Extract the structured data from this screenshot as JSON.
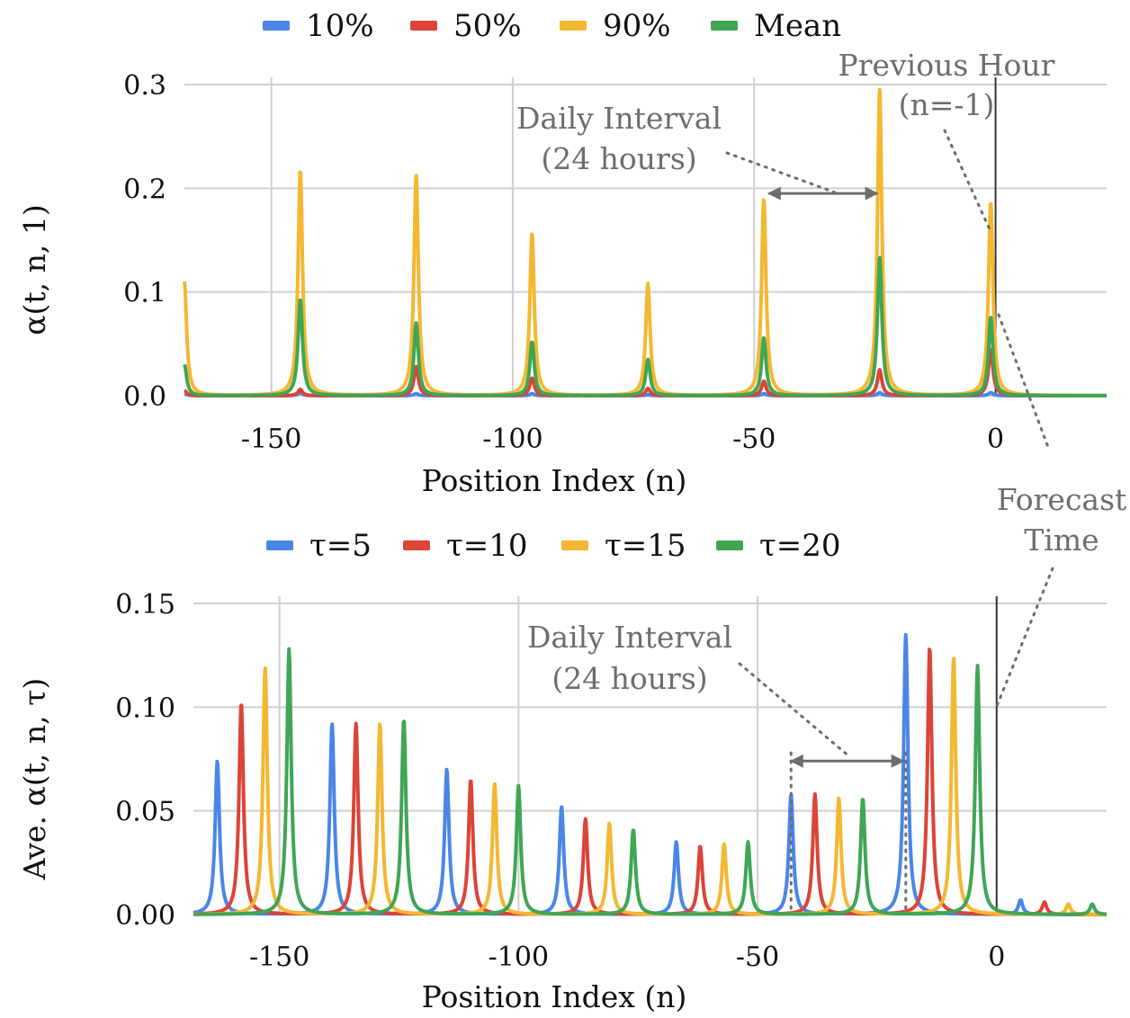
{
  "colors": {
    "blue": "#4a86e8",
    "red": "#db4437",
    "yellow": "#f4b731",
    "green": "#3fa654",
    "grid": "#cfcfcf",
    "annotation": "#6d6d6d"
  },
  "chart_data": [
    {
      "type": "line",
      "legend": [
        {
          "name": "10%",
          "color": "#4a86e8"
        },
        {
          "name": "50%",
          "color": "#db4437"
        },
        {
          "name": "90%",
          "color": "#f4b731"
        },
        {
          "name": "Mean",
          "color": "#3fa654"
        }
      ],
      "xlabel": "Position Index (n)",
      "ylabel": "α(t, n, 1)",
      "xlim": [
        -168,
        23
      ],
      "ylim": [
        0,
        0.3
      ],
      "xticks": [
        -150,
        -100,
        -50,
        0
      ],
      "xtick_labels": [
        "-150",
        "-100",
        "-50",
        "0"
      ],
      "yticks": [
        0,
        0.1,
        0.2,
        0.3
      ],
      "ytick_labels": [
        "0.0",
        "0.1",
        "0.2",
        "0.3"
      ],
      "peak_width": 0.55,
      "series": [
        {
          "name": "10%",
          "color": "#4a86e8",
          "peaks": [
            {
              "n": -168,
              "v": 0.002
            },
            {
              "n": -144,
              "v": 0.003
            },
            {
              "n": -120,
              "v": 0.002
            },
            {
              "n": -96,
              "v": 0.002
            },
            {
              "n": -72,
              "v": 0.001
            },
            {
              "n": -48,
              "v": 0.002
            },
            {
              "n": -24,
              "v": 0.003
            },
            {
              "n": -1,
              "v": 0.003
            }
          ]
        },
        {
          "name": "50%",
          "color": "#db4437",
          "peaks": [
            {
              "n": -168,
              "v": 0.005
            },
            {
              "n": -144,
              "v": 0.006
            },
            {
              "n": -120,
              "v": 0.028
            },
            {
              "n": -96,
              "v": 0.017
            },
            {
              "n": -72,
              "v": 0.007
            },
            {
              "n": -48,
              "v": 0.014
            },
            {
              "n": -24,
              "v": 0.025
            },
            {
              "n": -1,
              "v": 0.045
            }
          ]
        },
        {
          "name": "90%",
          "color": "#f4b731",
          "peaks": [
            {
              "n": -168,
              "v": 0.11
            },
            {
              "n": -144,
              "v": 0.218
            },
            {
              "n": -120,
              "v": 0.212
            },
            {
              "n": -96,
              "v": 0.157
            },
            {
              "n": -72,
              "v": 0.108
            },
            {
              "n": -48,
              "v": 0.19
            },
            {
              "n": -24,
              "v": 0.295
            },
            {
              "n": -1,
              "v": 0.187
            }
          ]
        },
        {
          "name": "Mean",
          "color": "#3fa654",
          "peaks": [
            {
              "n": -168,
              "v": 0.03
            },
            {
              "n": -144,
              "v": 0.093
            },
            {
              "n": -120,
              "v": 0.07
            },
            {
              "n": -96,
              "v": 0.052
            },
            {
              "n": -72,
              "v": 0.035
            },
            {
              "n": -48,
              "v": 0.056
            },
            {
              "n": -24,
              "v": 0.133
            },
            {
              "n": -1,
              "v": 0.076
            }
          ]
        }
      ],
      "annotations": {
        "daily_interval": [
          "Daily Interval",
          "(24 hours)"
        ],
        "previous_hour": [
          "Previous Hour",
          "(n=-1)"
        ]
      }
    },
    {
      "type": "line",
      "legend": [
        {
          "name": "τ=5",
          "color": "#4a86e8"
        },
        {
          "name": "τ=10",
          "color": "#db4437"
        },
        {
          "name": "τ=15",
          "color": "#f4b731"
        },
        {
          "name": "τ=20",
          "color": "#3fa654"
        }
      ],
      "xlabel": "Position Index (n)",
      "ylabel": "Ave. α(t, n, τ)",
      "xlim": [
        -168,
        23
      ],
      "ylim": [
        0,
        0.15
      ],
      "xticks": [
        -150,
        -100,
        -50,
        0
      ],
      "xtick_labels": [
        "-150",
        "-100",
        "-50",
        "0"
      ],
      "yticks": [
        0,
        0.05,
        0.1,
        0.15
      ],
      "ytick_labels": [
        "0.00",
        "0.05",
        "0.10",
        "0.15"
      ],
      "peak_width": 0.55,
      "series": [
        {
          "name": "τ=5",
          "color": "#4a86e8",
          "peaks": [
            {
              "n": -163,
              "v": 0.074
            },
            {
              "n": -139,
              "v": 0.092
            },
            {
              "n": -115,
              "v": 0.07
            },
            {
              "n": -91,
              "v": 0.052
            },
            {
              "n": -67,
              "v": 0.035
            },
            {
              "n": -43,
              "v": 0.058
            },
            {
              "n": -19,
              "v": 0.135
            },
            {
              "n": 5,
              "v": 0.007
            }
          ]
        },
        {
          "name": "τ=10",
          "color": "#db4437",
          "peaks": [
            {
              "n": -158,
              "v": 0.102
            },
            {
              "n": -134,
              "v": 0.092
            },
            {
              "n": -110,
              "v": 0.065
            },
            {
              "n": -86,
              "v": 0.046
            },
            {
              "n": -62,
              "v": 0.033
            },
            {
              "n": -38,
              "v": 0.058
            },
            {
              "n": -14,
              "v": 0.129
            },
            {
              "n": 10,
              "v": 0.006
            }
          ]
        },
        {
          "name": "τ=15",
          "color": "#f4b731",
          "peaks": [
            {
              "n": -153,
              "v": 0.119
            },
            {
              "n": -129,
              "v": 0.092
            },
            {
              "n": -105,
              "v": 0.063
            },
            {
              "n": -81,
              "v": 0.044
            },
            {
              "n": -57,
              "v": 0.034
            },
            {
              "n": -33,
              "v": 0.056
            },
            {
              "n": -9,
              "v": 0.124
            },
            {
              "n": 15,
              "v": 0.005
            }
          ]
        },
        {
          "name": "τ=20",
          "color": "#3fa654",
          "peaks": [
            {
              "n": -148,
              "v": 0.128
            },
            {
              "n": -124,
              "v": 0.094
            },
            {
              "n": -100,
              "v": 0.062
            },
            {
              "n": -76,
              "v": 0.041
            },
            {
              "n": -52,
              "v": 0.035
            },
            {
              "n": -28,
              "v": 0.056
            },
            {
              "n": -4,
              "v": 0.12
            },
            {
              "n": 20,
              "v": 0.005
            }
          ]
        }
      ],
      "annotations": {
        "daily_interval": [
          "Daily Interval",
          "(24 hours)"
        ]
      }
    }
  ],
  "shared_annotation": {
    "forecast_time": [
      "Forecast",
      "Time"
    ]
  }
}
